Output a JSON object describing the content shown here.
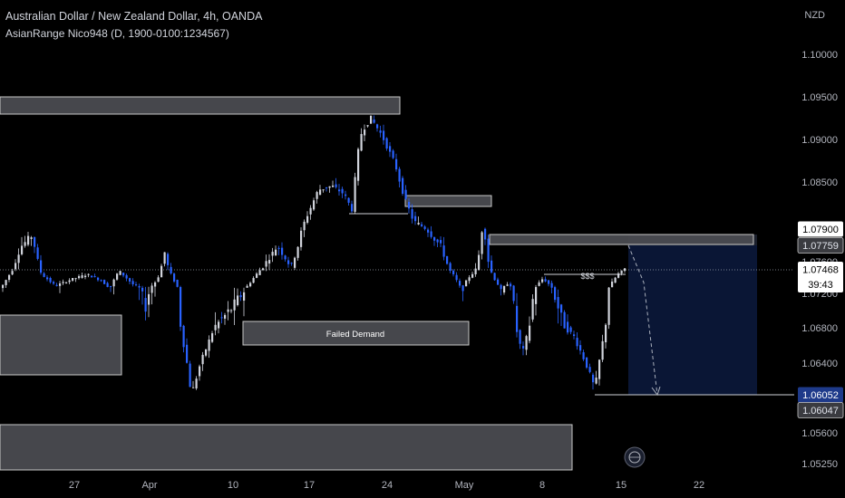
{
  "header": {
    "title": "Australian Dollar / New Zealand Dollar, 4h, OANDA",
    "indicator": "AsianRange Nico948 (D, 1900-0100:1234567)",
    "currency": "NZD"
  },
  "colors": {
    "background": "#000000",
    "candle_up": "#d1d4dc",
    "candle_down": "#2962ff",
    "zone_fill": "#4a4b50",
    "zone_border": "#c8c8c8",
    "short_position_fill": "#0c1a3e",
    "text": "#d1d4dc"
  },
  "price_scale": {
    "ticks": [
      "1.10000",
      "1.09500",
      "1.09000",
      "1.08500",
      "1.07600",
      "1.07200",
      "1.06800",
      "1.06400",
      "1.05600",
      "1.05250"
    ],
    "labels": [
      {
        "value": "1.07900",
        "style": "white"
      },
      {
        "value": "1.07759",
        "style": "gray"
      },
      {
        "value": "1.07468",
        "style": "current",
        "countdown": "39:43"
      },
      {
        "value": "1.06052",
        "style": "blue"
      },
      {
        "value": "1.06047",
        "style": "gray"
      }
    ]
  },
  "time_scale": {
    "labels": [
      "27",
      "Apr",
      "10",
      "17",
      "24",
      "May",
      "8",
      "15",
      "22"
    ]
  },
  "annotations": {
    "failed_demand": "Failed Demand",
    "liquidity": "$$$"
  },
  "chart_data": {
    "type": "candlestick",
    "symbol": "AUDNZD",
    "interval": "4h",
    "current_price": 1.07468,
    "price_axis_ticks": [
      1.1,
      1.095,
      1.09,
      1.085,
      1.076,
      1.072,
      1.068,
      1.064,
      1.056,
      1.0525
    ],
    "x_axis_ticks": [
      "27",
      "Apr",
      "10",
      "17",
      "24",
      "May",
      "8",
      "15",
      "22"
    ],
    "short_position": {
      "entry": 1.07759,
      "stop": 1.079,
      "target": 1.06052
    },
    "zones": [
      {
        "name": "supply-top",
        "top": 1.0965,
        "bottom": 1.0945
      },
      {
        "name": "demand-left",
        "top": 1.0703,
        "bottom": 1.063
      },
      {
        "name": "failed-demand",
        "top": 1.0689,
        "bottom": 1.0664,
        "label": "Failed Demand"
      },
      {
        "name": "supply-mid",
        "top": 1.0838,
        "bottom": 1.0825
      },
      {
        "name": "supply-right",
        "top": 1.079,
        "bottom": 1.0775
      },
      {
        "name": "demand-bottom",
        "top": 1.0574,
        "bottom": 1.0522
      }
    ]
  }
}
